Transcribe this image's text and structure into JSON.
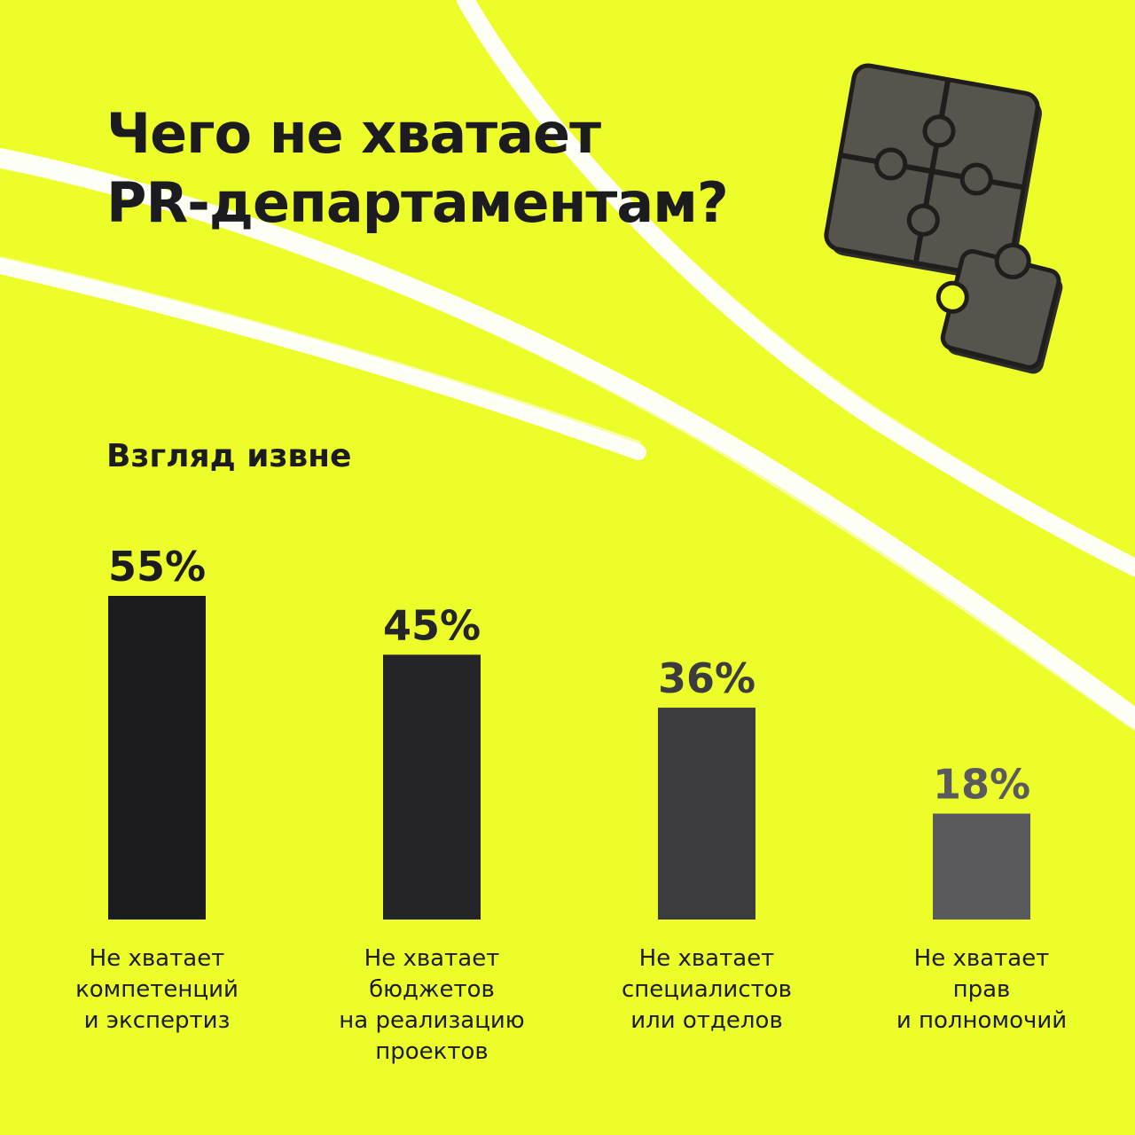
{
  "title_lines": [
    "Чего не хватает",
    "PR-департаментам?"
  ],
  "subtitle": "Взгляд извне",
  "colors": {
    "background": "#ECFD2A",
    "stripes": "#FFFFFF",
    "puzzle": "#4A4843",
    "bars": [
      "#1C1C20",
      "#252529",
      "#3C3B3F",
      "#5A595D"
    ]
  },
  "chart_data": {
    "type": "bar",
    "title": "Чего не хватает PR-департаментам?",
    "subtitle": "Взгляд извне",
    "categories": [
      [
        "Не хватает",
        "компетенций",
        "и экспертиз"
      ],
      [
        "Не хватает",
        "бюджетов",
        "на реализацию",
        "проектов"
      ],
      [
        "Не хватает",
        "специалистов",
        "или отделов"
      ],
      [
        "Не хватает",
        "прав",
        "и полномочий"
      ]
    ],
    "values": [
      55,
      45,
      36,
      18
    ],
    "value_labels": [
      "55%",
      "45%",
      "36%",
      "18%"
    ],
    "unit": "%",
    "ylim": [
      0,
      55
    ],
    "grid": false,
    "legend": "none",
    "xlabel": "",
    "ylabel": ""
  }
}
